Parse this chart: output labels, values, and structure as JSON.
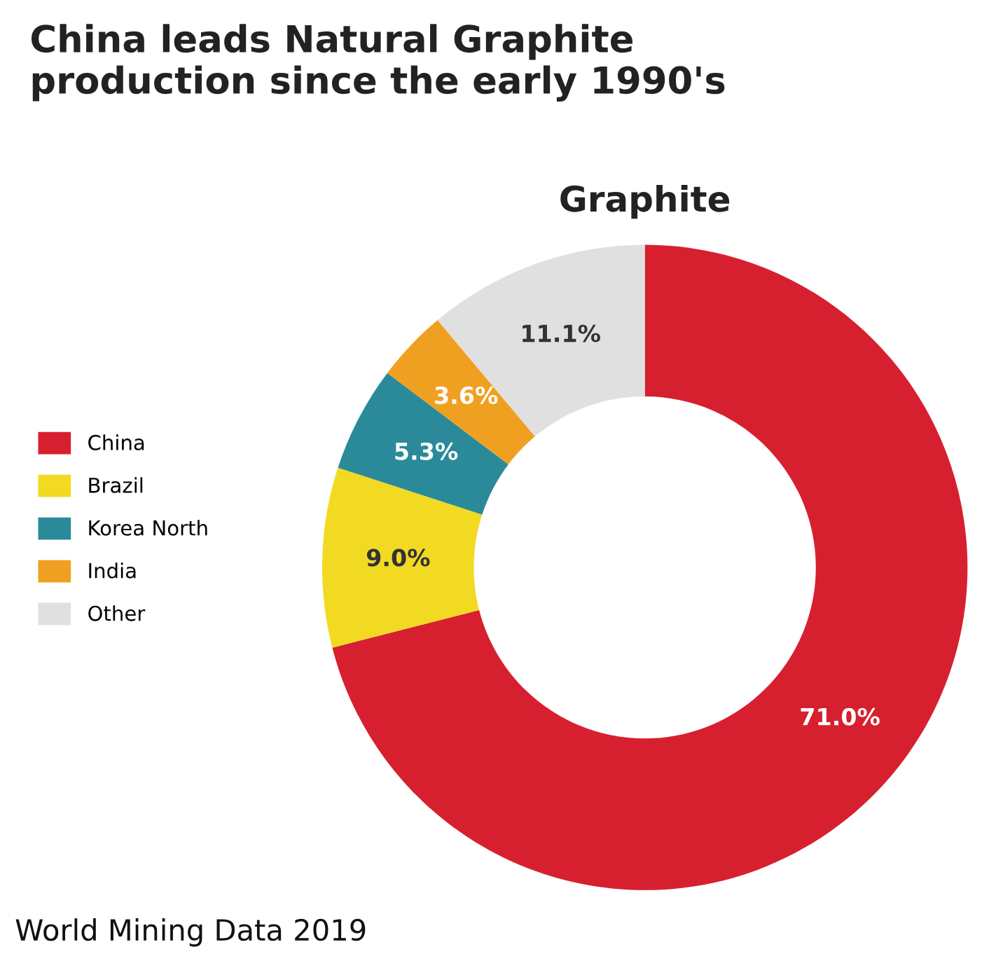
{
  "chart_data": {
    "type": "donut",
    "title": "China leads Natural Graphite\nproduction since the early 1990's",
    "subtitle": "Graphite",
    "categories": [
      "China",
      "Brazil",
      "Korea North",
      "India",
      "Other"
    ],
    "values": [
      71.0,
      9.0,
      5.3,
      3.6,
      11.1
    ],
    "colors": [
      "#d7202f",
      "#f2da22",
      "#2a8a9a",
      "#f0a020",
      "#e0e0e0"
    ],
    "value_labels": [
      "71.0%",
      "9.0%",
      "5.3%",
      "3.6%",
      "11.1%"
    ],
    "legend": "left",
    "annotations": [
      "World Mining Data 2019"
    ]
  }
}
